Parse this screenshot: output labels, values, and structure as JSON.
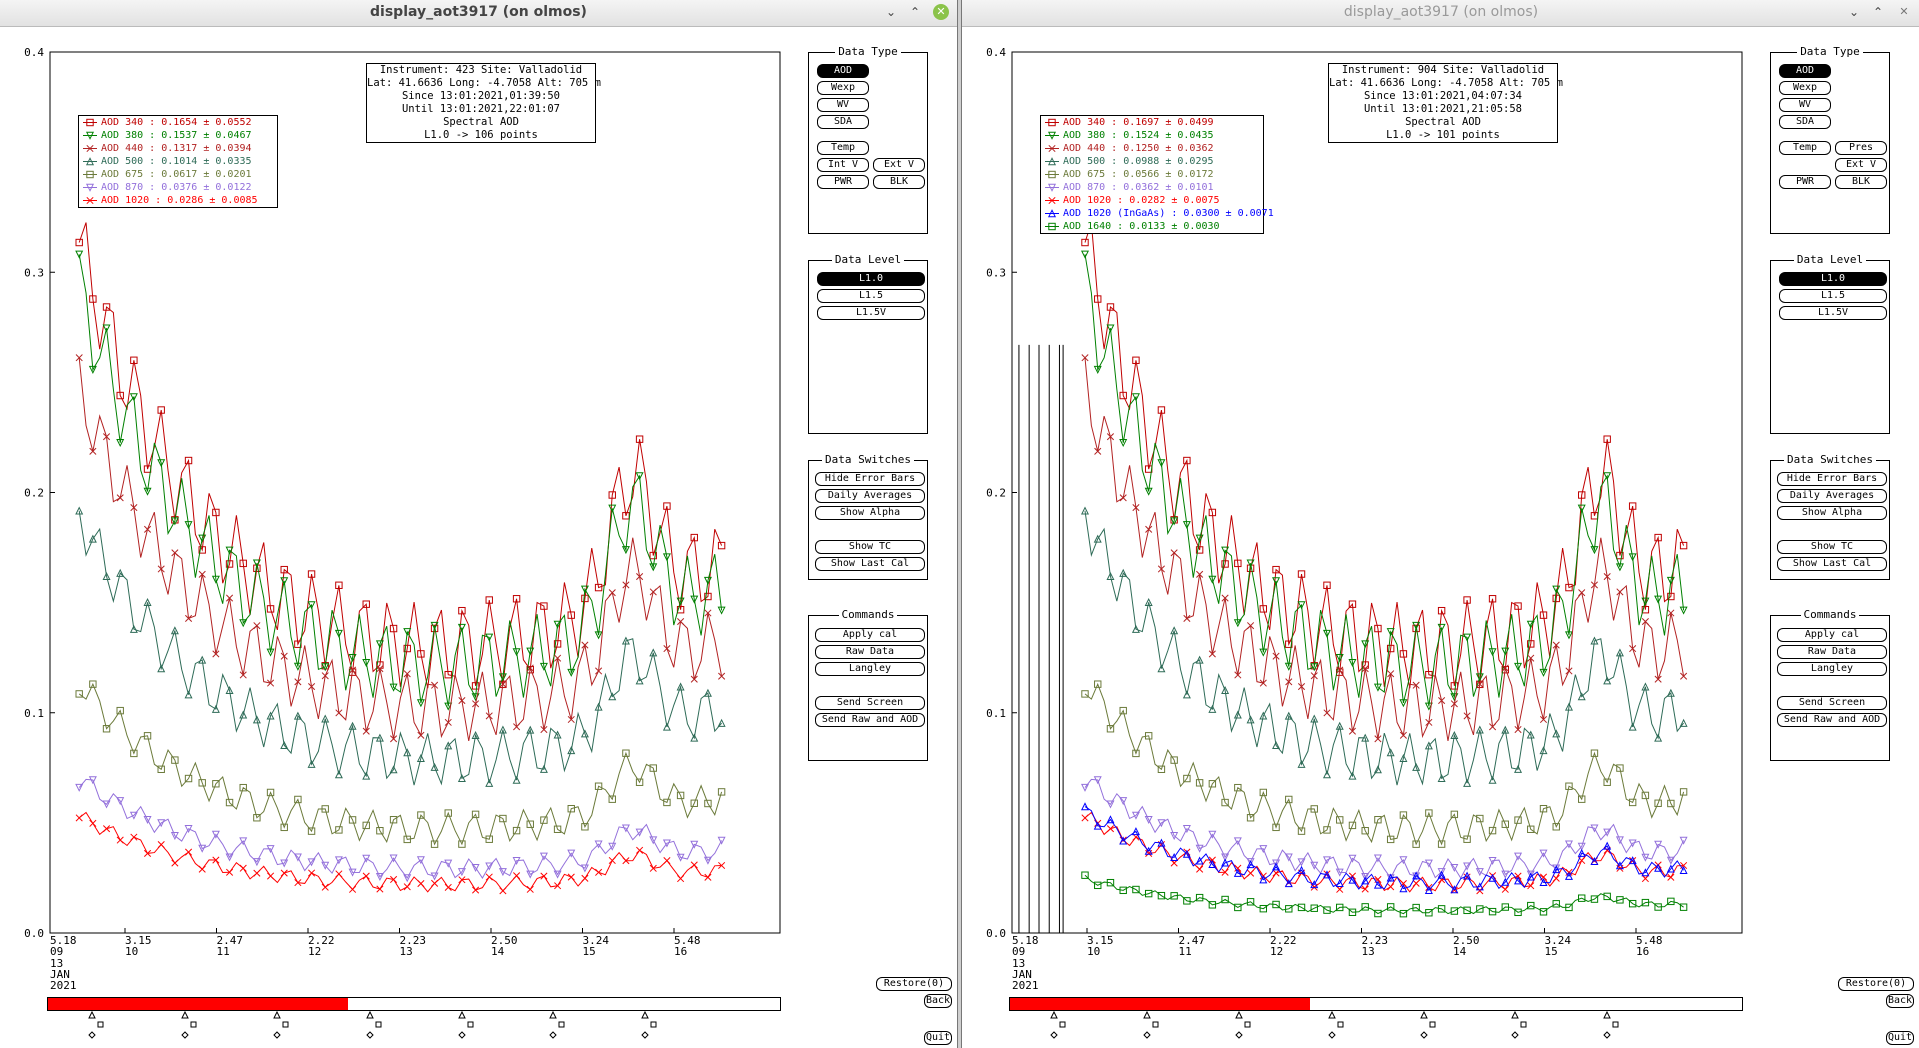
{
  "left": {
    "title": "display_aot3917 (on olmos)",
    "info": {
      "line1": "Instrument: 423 Site: Valladolid",
      "line2": "Lat: 41.6636 Long: -4.7058 Alt: 705 m",
      "line3": "Since 13:01:2021,01:39:50",
      "line4": "Until 13:01:2021,22:01:07",
      "line5": "Spectral AOD",
      "line6": "L1.0 -> 106 points"
    },
    "legend": [
      {
        "label": "AOD 340   : 0.1654 ± 0.0552",
        "color": "#c00000",
        "marker": "square"
      },
      {
        "label": "AOD 380   : 0.1537 ± 0.0467",
        "color": "#008000",
        "marker": "triangle-down"
      },
      {
        "label": "AOD 440   : 0.1317 ± 0.0394",
        "color": "#b22222",
        "marker": "x"
      },
      {
        "label": "AOD 500   : 0.1014 ± 0.0335",
        "color": "#2e6b57",
        "marker": "triangle-up"
      },
      {
        "label": "AOD 675   : 0.0617 ± 0.0201",
        "color": "#6b7a3a",
        "marker": "square"
      },
      {
        "label": "AOD 870   : 0.0376 ± 0.0122",
        "color": "#9370db",
        "marker": "triangle-down"
      },
      {
        "label": "AOD 1020   : 0.0286 ± 0.0085",
        "color": "#ff0000",
        "marker": "x"
      }
    ],
    "y_ticks": [
      "0.4",
      "0.3",
      "0.2",
      "0.1",
      "0.0"
    ],
    "x_ticks": [
      {
        "top": "5.18",
        "bottom": "09"
      },
      {
        "top": "3.15",
        "bottom": "10"
      },
      {
        "top": "2.47",
        "bottom": "11"
      },
      {
        "top": "2.22",
        "bottom": "12"
      },
      {
        "top": "2.23",
        "bottom": "13"
      },
      {
        "top": "2.50",
        "bottom": "14"
      },
      {
        "top": "3.24",
        "bottom": "15"
      },
      {
        "top": "5.48",
        "bottom": "16"
      }
    ],
    "date_label": {
      "day": "13",
      "month": "JAN",
      "year": "2021"
    },
    "progress": 0.41
  },
  "right": {
    "title": "display_aot3917 (on olmos)",
    "info": {
      "line1": "Instrument: 904 Site: Valladolid",
      "line2": "Lat: 41.6636 Long: -4.7058 Alt: 705 m",
      "line3": "Since 13:01:2021,04:07:34",
      "line4": "Until 13:01:2021,21:05:58",
      "line5": "Spectral AOD",
      "line6": "L1.0 -> 101 points"
    },
    "legend": [
      {
        "label": "AOD 340   : 0.1697 ± 0.0499",
        "color": "#c00000",
        "marker": "square"
      },
      {
        "label": "AOD 380   : 0.1524 ± 0.0435",
        "color": "#008000",
        "marker": "triangle-down"
      },
      {
        "label": "AOD 440   : 0.1250 ± 0.0362",
        "color": "#b22222",
        "marker": "x"
      },
      {
        "label": "AOD 500   : 0.0988 ± 0.0295",
        "color": "#2e6b57",
        "marker": "triangle-up"
      },
      {
        "label": "AOD 675   : 0.0566 ± 0.0172",
        "color": "#6b7a3a",
        "marker": "square"
      },
      {
        "label": "AOD 870   : 0.0362 ± 0.0101",
        "color": "#9370db",
        "marker": "triangle-down"
      },
      {
        "label": "AOD 1020   : 0.0282 ± 0.0075",
        "color": "#ff0000",
        "marker": "x"
      },
      {
        "label": "AOD 1020 (InGaAs)  : 0.0300 ± 0.0071",
        "color": "#0000ff",
        "marker": "triangle-up"
      },
      {
        "label": "AOD 1640   : 0.0133 ± 0.0030",
        "color": "#008000",
        "marker": "square"
      }
    ],
    "y_ticks": [
      "0.4",
      "0.3",
      "0.2",
      "0.1",
      "0.0"
    ],
    "x_ticks": [
      {
        "top": "5.18",
        "bottom": "09"
      },
      {
        "top": "3.15",
        "bottom": "10"
      },
      {
        "top": "2.47",
        "bottom": "11"
      },
      {
        "top": "2.22",
        "bottom": "12"
      },
      {
        "top": "2.23",
        "bottom": "13"
      },
      {
        "top": "2.50",
        "bottom": "14"
      },
      {
        "top": "3.24",
        "bottom": "15"
      },
      {
        "top": "5.48",
        "bottom": "16"
      }
    ],
    "date_label": {
      "day": "13",
      "month": "JAN",
      "year": "2021"
    },
    "progress": 0.41
  },
  "panels": {
    "data_type": {
      "title": "Data Type",
      "aod": "AOD",
      "wexp": "Wexp",
      "wv": "WV",
      "sda": "SDA",
      "temp": "Temp",
      "pres": "Pres",
      "int_v": "Int V",
      "ext_v": "Ext V",
      "pwr": "PWR",
      "blk": "BLK"
    },
    "data_level": {
      "title": "Data Level",
      "l10": "L1.0",
      "l15": "L1.5",
      "l15v": "L1.5V"
    },
    "data_switches": {
      "title": "Data Switches",
      "hide_error_bars": "Hide Error Bars",
      "daily_averages": "Daily Averages",
      "show_alpha": "Show Alpha",
      "show_tc": "Show TC",
      "show_last_cal": "Show Last Cal"
    },
    "commands": {
      "title": "Commands",
      "apply_cal": "Apply cal",
      "raw_data": "Raw Data",
      "langley": "Langley",
      "send_screen": "Send Screen",
      "send_raw_aod": "Send Raw and AOD"
    }
  },
  "footer": {
    "restore": "Restore(0)",
    "back": "Back",
    "quit": "Quit"
  }
}
